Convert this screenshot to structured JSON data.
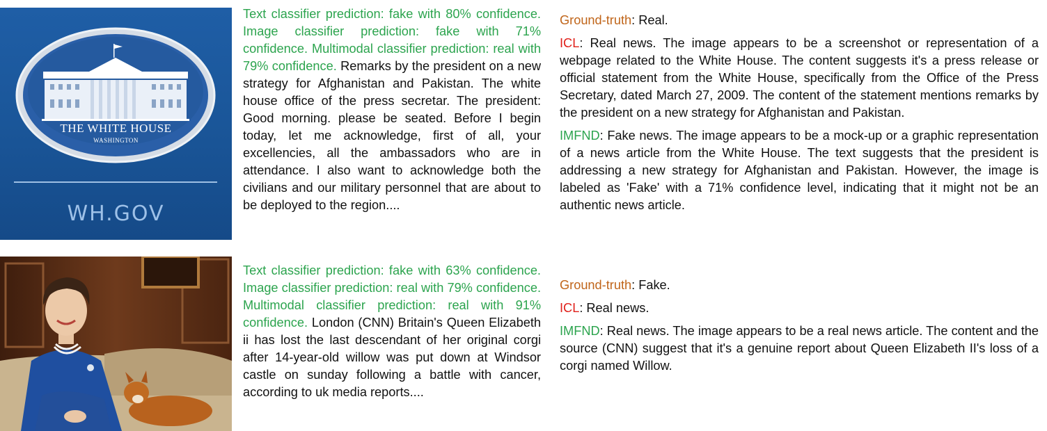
{
  "examples": [
    {
      "image": {
        "title": "THE WHITE HOUSE",
        "subtitle": "WASHINGTON",
        "footer": "WH.GOV"
      },
      "classifier_text": "Text classifier prediction: fake with 80% confidence. Image classifier prediction: fake with 71% confidence. Multimodal classifier prediction: real with 79% confidence.",
      "news_text": "Remarks by the president on a new strategy for Afghanistan and Pakistan.  The white house office of the press secretar. The president: Good morning. please be seated. Before I begin today, let me acknowledge, first of all, your excellencies, all the ambassadors who are in attendance. I also want to acknowledge both the civilians and our military personnel that are about to be deployed to the region....",
      "ground_truth_label": "Ground-truth",
      "ground_truth_value": ": Real.",
      "icl_label": "ICL",
      "icl_text": ": Real news. The image appears to be a screenshot or representation of a webpage related to the White House. The content suggests it's a press release or official statement from the White House, specifically from the Office of the Press Secretary, dated March 27, 2009. The content of the statement mentions remarks by the president on a new strategy for Afghanistan and Pakistan.",
      "imfnd_label": "IMFND",
      "imfnd_text": ": Fake news. The image appears to be a mock-up or a graphic representation of a news article from the White House. The text suggests that the president is addressing a new strategy for Afghanistan and Pakistan. However, the image is labeled as 'Fake' with a 71% confidence level, indicating that it might not be an authentic news article."
    },
    {
      "classifier_text": "Text classifier prediction: fake with 63% confidence. Image classifier prediction: real with 79% confidence. Multimodal classifier prediction: real with 91% confidence.",
      "news_text": " London (CNN) Britain's Queen Elizabeth ii has lost the last descendant of her original corgi after 14-year-old willow was put down at Windsor castle on sunday following a battle with cancer, according to uk media reports....",
      "ground_truth_label": "Ground-truth",
      "ground_truth_value": ": Fake.",
      "icl_label": "ICL",
      "icl_text": ": Real news.",
      "imfnd_label": "IMFND",
      "imfnd_text": ": Real news. The image appears to be a real news article. The content and the source (CNN) suggest that it's a genuine report about Queen Elizabeth II's loss of a corgi named Willow."
    }
  ],
  "colors": {
    "classifier_green": "#2ca44e",
    "ground_truth_orange": "#c0651a",
    "icl_red": "#e0201a",
    "imfnd_green": "#2ca44e"
  }
}
